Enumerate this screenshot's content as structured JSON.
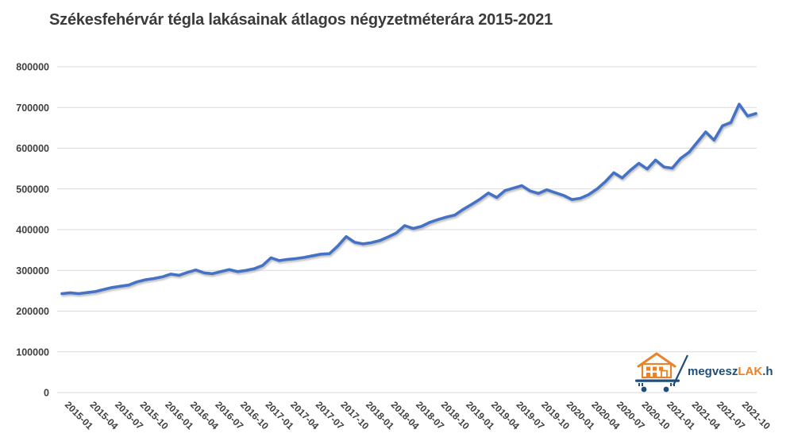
{
  "title": "Székesfehérvár tégla lakásainak átlagos négyzetméterára 2015-2021",
  "logo": {
    "text_primary": "megvesz",
    "text_accent": "LAK",
    "text_suffix": ".hu",
    "navy": "#1F4E79",
    "orange": "#E8832A"
  },
  "colors": {
    "line": "#4472C4",
    "grid": "#D9D9D9",
    "axis_text": "#404040",
    "title_text": "#3B3B3B"
  },
  "chart_data": {
    "type": "line",
    "title": "Székesfehérvár tégla lakásainak átlagos négyzetméterára 2015-2021",
    "xlabel": "",
    "ylabel": "",
    "ylim": [
      0,
      800000
    ],
    "yticks": [
      0,
      100000,
      200000,
      300000,
      400000,
      500000,
      600000,
      700000,
      800000
    ],
    "ytick_labels": [
      "0",
      "100000",
      "200000",
      "300000",
      "400000",
      "500000",
      "600000",
      "700000",
      "800000"
    ],
    "x_tick_step": 3,
    "grid": true,
    "legend": "none",
    "line_color": "#4472C4",
    "gridline_color": "#D9D9D9",
    "x": [
      "2015-01",
      "2015-02",
      "2015-03",
      "2015-04",
      "2015-05",
      "2015-06",
      "2015-07",
      "2015-08",
      "2015-09",
      "2015-10",
      "2015-11",
      "2015-12",
      "2016-01",
      "2016-02",
      "2016-03",
      "2016-04",
      "2016-05",
      "2016-06",
      "2016-07",
      "2016-08",
      "2016-09",
      "2016-10",
      "2016-11",
      "2016-12",
      "2017-01",
      "2017-02",
      "2017-03",
      "2017-04",
      "2017-05",
      "2017-06",
      "2017-07",
      "2017-08",
      "2017-09",
      "2017-10",
      "2017-11",
      "2017-12",
      "2018-01",
      "2018-02",
      "2018-03",
      "2018-04",
      "2018-05",
      "2018-06",
      "2018-07",
      "2018-08",
      "2018-09",
      "2018-10",
      "2018-11",
      "2018-12",
      "2019-01",
      "2019-02",
      "2019-03",
      "2019-04",
      "2019-05",
      "2019-06",
      "2019-07",
      "2019-08",
      "2019-09",
      "2019-10",
      "2019-11",
      "2019-12",
      "2020-01",
      "2020-02",
      "2020-03",
      "2020-04",
      "2020-05",
      "2020-06",
      "2020-07",
      "2020-08",
      "2020-09",
      "2020-10",
      "2020-11",
      "2020-12",
      "2021-01",
      "2021-02",
      "2021-03",
      "2021-04",
      "2021-05",
      "2021-06",
      "2021-07",
      "2021-08",
      "2021-09",
      "2021-10",
      "2021-11",
      "2021-12"
    ],
    "values": [
      243000,
      245000,
      243000,
      245500,
      248000,
      253000,
      258000,
      261000,
      264000,
      272000,
      277000,
      280000,
      284000,
      291000,
      288000,
      295000,
      301000,
      294000,
      292000,
      297000,
      302000,
      297000,
      300000,
      304000,
      312000,
      331000,
      324000,
      327000,
      329000,
      332000,
      336000,
      340000,
      341000,
      360000,
      383000,
      369000,
      365000,
      368000,
      373000,
      382000,
      392000,
      410000,
      403000,
      408000,
      418000,
      425000,
      431000,
      436000,
      450000,
      462000,
      475000,
      490000,
      479000,
      496000,
      502000,
      508000,
      495000,
      489000,
      498000,
      491000,
      484000,
      474000,
      477000,
      486000,
      500000,
      518000,
      540000,
      527000,
      546000,
      563000,
      549000,
      571000,
      554000,
      551000,
      575000,
      590000,
      615000,
      640000,
      620000,
      655000,
      663000,
      708000,
      679000,
      685000
    ]
  }
}
